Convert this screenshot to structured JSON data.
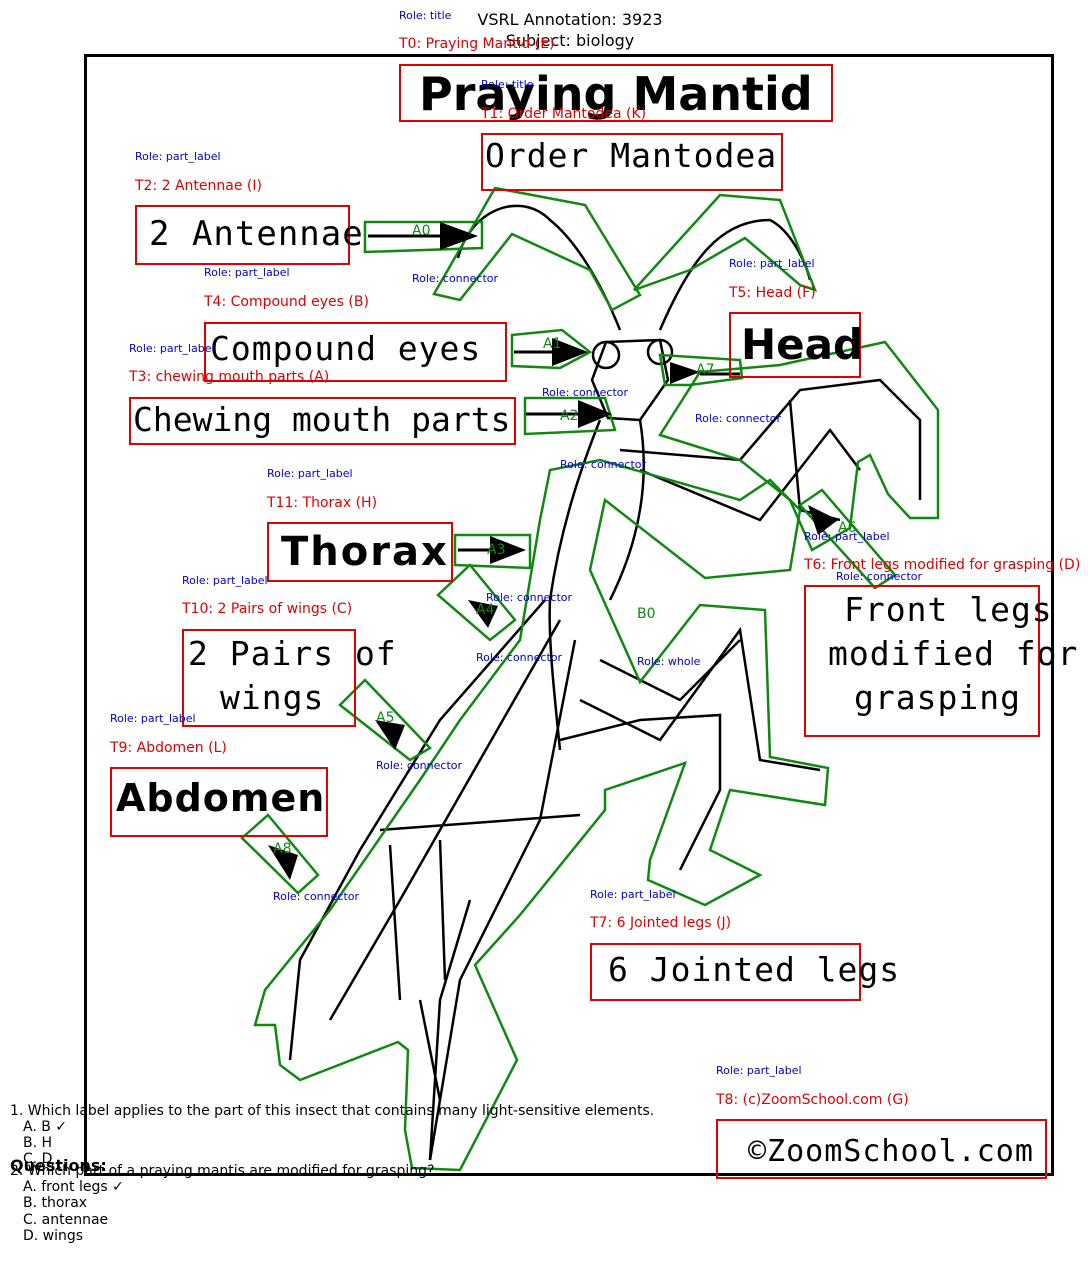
{
  "header": {
    "annotation": "VSRL Annotation: 3923",
    "subject": "Subject: biology"
  },
  "diagram": {
    "roles": {
      "title": "Role: title",
      "part_label": "Role: part_label",
      "connector": "Role: connector",
      "whole": "Role: whole"
    },
    "texts": [
      {
        "id": "T0",
        "tag": "T0: Praying Mantid (E)",
        "text": "Praying Mantid",
        "role": "Role: title"
      },
      {
        "id": "T1",
        "tag": "T1: Order Mantodea (K)",
        "text": "Order Mantodea",
        "role": "Role: title"
      },
      {
        "id": "T2",
        "tag": "T2: 2 Antennae (I)",
        "text": "2 Antennae",
        "role": "Role: part_label"
      },
      {
        "id": "T4",
        "tag": "T4: Compound eyes (B)",
        "text": "Compound eyes",
        "role": "Role: part_label"
      },
      {
        "id": "T5",
        "tag": "T5: Head (F)",
        "text": "Head",
        "role": "Role: part_label"
      },
      {
        "id": "T3",
        "tag": "T3: chewing mouth parts (A)",
        "text": "Chewing mouth parts",
        "role": "Role: part_label"
      },
      {
        "id": "T11",
        "tag": "T11: Thorax (H)",
        "text": "Thorax",
        "role": "Role: part_label"
      },
      {
        "id": "T6",
        "tag": "T6: Front legs modified for grasping (D)",
        "text1": "Front legs",
        "text2": "modified for",
        "text3": "grasping",
        "role": "Role: part_label"
      },
      {
        "id": "T10",
        "tag": "T10: 2 Pairs of wings (C)",
        "text1": "2 Pairs of",
        "text2": "wings",
        "role": "Role: part_label"
      },
      {
        "id": "T9",
        "tag": "T9: Abdomen (L)",
        "text": "Abdomen",
        "role": "Role: part_label"
      },
      {
        "id": "T7",
        "tag": "T7: 6 Jointed legs (J)",
        "text": "6 Jointed legs",
        "role": "Role: part_label"
      },
      {
        "id": "T8",
        "tag": "T8: (c)ZoomSchool.com (G)",
        "text": "©ZoomSchool.com",
        "role": "Role: part_label"
      }
    ],
    "arrows": [
      "A0",
      "A1",
      "A2",
      "A3",
      "A4",
      "A5",
      "A6",
      "A7",
      "A8"
    ],
    "blobs": [
      "B0"
    ],
    "colors": {
      "text_box": "#e00000",
      "region": "#118811",
      "role": "#0000cc"
    }
  },
  "questions": {
    "heading": "Questions:",
    "items": [
      {
        "text": "1. Which label applies to the part of this insect that contains many light-sensitive elements.",
        "options": [
          "A. B ✓",
          "B. H",
          "C. D"
        ]
      },
      {
        "text": "2. Which part of a praying mantis are modified for grasping?",
        "options": [
          "A. front legs ✓",
          "B. thorax",
          "C. antennae",
          "D. wings"
        ]
      }
    ]
  }
}
